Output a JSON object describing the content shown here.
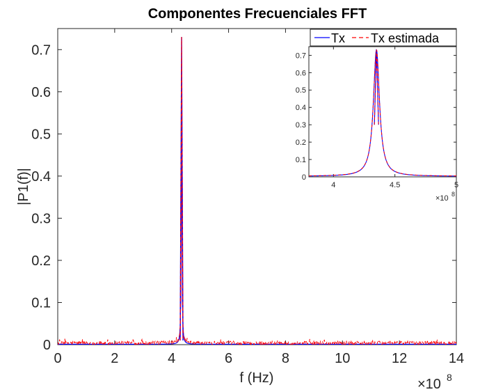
{
  "chart_data": [
    {
      "type": "line",
      "title": "Componentes Frecuenciales FFT",
      "xlabel": "f (Hz)",
      "ylabel": "|P1(f)|",
      "x_exponent_label": "×10",
      "x_exponent_power": "8",
      "xlim": [
        0,
        14
      ],
      "ylim": [
        0,
        0.75
      ],
      "xticks": [
        0,
        2,
        4,
        6,
        8,
        10,
        12,
        14
      ],
      "yticks": [
        0,
        0.1,
        0.2,
        0.3,
        0.4,
        0.5,
        0.6,
        0.7
      ],
      "x_tick_labels": [
        "0",
        "2",
        "4",
        "6",
        "8",
        "10",
        "12",
        "14"
      ],
      "y_tick_labels": [
        "0",
        "0.1",
        "0.2",
        "0.3",
        "0.4",
        "0.5",
        "0.6",
        "0.7"
      ],
      "grid": false,
      "peak": {
        "x": 4.35,
        "y": 0.73
      },
      "noise_floor": 0.005,
      "series": [
        {
          "name": "Tx",
          "color": "#0000ff",
          "style": "solid"
        },
        {
          "name": "Tx estimada",
          "color": "#ff0000",
          "style": "dashed"
        }
      ]
    },
    {
      "type": "line",
      "inset": true,
      "xlim": [
        3.8,
        5.0
      ],
      "ylim": [
        0,
        0.75
      ],
      "xticks": [
        4,
        4.5,
        5
      ],
      "yticks": [
        0,
        0.1,
        0.2,
        0.3,
        0.4,
        0.5,
        0.6,
        0.7
      ],
      "x_tick_labels": [
        "4",
        "4.5",
        "5"
      ],
      "y_tick_labels": [
        "0",
        "0.1",
        "0.2",
        "0.3",
        "0.4",
        "0.5",
        "0.6",
        "0.7"
      ],
      "x_exponent_label": "×10",
      "x_exponent_power": "8",
      "legend": {
        "placement": "top",
        "entries": [
          "Tx",
          "Tx estimada"
        ]
      },
      "series": [
        {
          "name": "Tx",
          "color": "#0000ff",
          "style": "solid"
        },
        {
          "name": "Tx estimada",
          "color": "#ff0000",
          "style": "dashed"
        }
      ]
    }
  ]
}
